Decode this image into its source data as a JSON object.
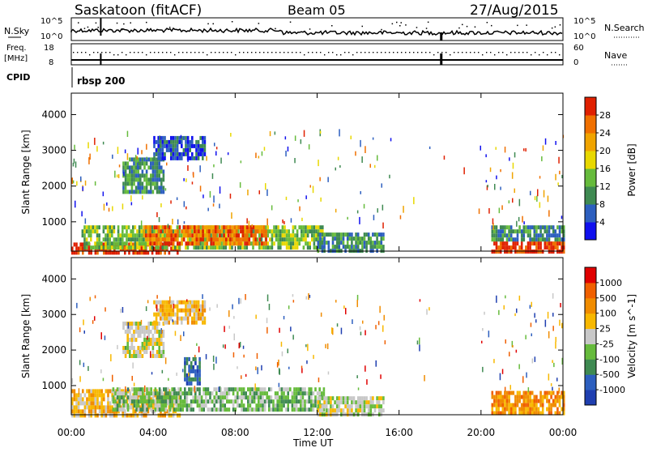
{
  "header": {
    "title": "Saskatoon (fitACF)",
    "beam": "Beam 05",
    "date": "27/Aug/2015"
  },
  "panels": {
    "nsky_label": "N.Sky",
    "nsky_tick_top": "10^5",
    "nsky_tick_bottom": "10^0",
    "nsearch_label": "N.Search",
    "nsearch_tick_top": "10^5",
    "nsearch_tick_bottom": "10^0",
    "freq_label": "Freq.",
    "freq_unit": "[MHz]",
    "freq_tick_top": "18",
    "freq_tick_bottom": "8",
    "nave_label": "Nave",
    "nave_tick_top": "60",
    "nave_tick_bottom": "0",
    "cpid_label": "CPID",
    "cpid_value": "rbsp 200"
  },
  "chart_data": [
    {
      "type": "heatmap",
      "title": "",
      "xlabel": "",
      "ylabel": "Slant Range [km]",
      "x_ticks": [
        "00:00",
        "04:00",
        "08:00",
        "12:00",
        "16:00",
        "20:00",
        "00:00"
      ],
      "y_ticks": [
        1000,
        2000,
        3000,
        4000
      ],
      "ylim": [
        180,
        4600
      ],
      "colorbar_label": "Power [dB]",
      "colorbar_ticks": [
        "4",
        "8",
        "12",
        "16",
        "20",
        "24",
        "28"
      ],
      "colors": [
        "#1010ee",
        "#2d5fbf",
        "#3f8a52",
        "#66bb3c",
        "#e8d800",
        "#f0a400",
        "#f07000",
        "#e02000"
      ],
      "echo_regions": [
        {
          "t0": 0.0,
          "t1": 5.3,
          "r0": 180,
          "r1": 420,
          "level": 7
        },
        {
          "t0": 0.5,
          "t1": 12.3,
          "r0": 300,
          "r1": 900,
          "level": 3
        },
        {
          "t0": 3.5,
          "t1": 9.5,
          "r0": 400,
          "r1": 900,
          "level": 6
        },
        {
          "t0": 2.5,
          "t1": 4.5,
          "r0": 1800,
          "r1": 2800,
          "level": 2
        },
        {
          "t0": 4.0,
          "t1": 6.5,
          "r0": 2800,
          "r1": 3400,
          "level": 1
        },
        {
          "t0": 12.0,
          "t1": 15.2,
          "r0": 200,
          "r1": 700,
          "level": 2
        },
        {
          "t0": 20.5,
          "t1": 24.0,
          "r0": 200,
          "r1": 450,
          "level": 7
        },
        {
          "t0": 20.5,
          "t1": 24.0,
          "r0": 450,
          "r1": 900,
          "level": 2
        }
      ]
    },
    {
      "type": "heatmap",
      "title": "",
      "xlabel": "Time UT",
      "ylabel": "Slant Range [km]",
      "x_ticks": [
        "00:00",
        "04:00",
        "08:00",
        "12:00",
        "16:00",
        "20:00",
        "00:00"
      ],
      "y_ticks": [
        1000,
        2000,
        3000,
        4000
      ],
      "ylim": [
        180,
        4600
      ],
      "colorbar_label": "Velocity [m s^-1]",
      "colorbar_ticks": [
        "-1000",
        "-500",
        "-100",
        "-25",
        "25",
        "100",
        "500",
        "1000"
      ],
      "colors": [
        "#e00000",
        "#f06000",
        "#f08c00",
        "#f8b800",
        "#c8c8c8",
        "#66bb3c",
        "#3f8a52",
        "#2d5fbf",
        "#1f3fb0"
      ],
      "echo_regions": [
        {
          "t0": 0.0,
          "t1": 5.3,
          "r0": 180,
          "r1": 900,
          "level": 3
        },
        {
          "t0": 2.0,
          "t1": 12.3,
          "r0": 300,
          "r1": 950,
          "level": 5
        },
        {
          "t0": 2.5,
          "t1": 4.5,
          "r0": 1800,
          "r1": 2800,
          "level": 4
        },
        {
          "t0": 4.0,
          "t1": 6.5,
          "r0": 2800,
          "r1": 3400,
          "level": 3
        },
        {
          "t0": 5.5,
          "t1": 6.3,
          "r0": 1100,
          "r1": 1800,
          "level": 7
        },
        {
          "t0": 12.0,
          "t1": 15.2,
          "r0": 200,
          "r1": 700,
          "level": 4
        },
        {
          "t0": 20.5,
          "t1": 24.0,
          "r0": 200,
          "r1": 850,
          "level": 2
        }
      ]
    }
  ]
}
